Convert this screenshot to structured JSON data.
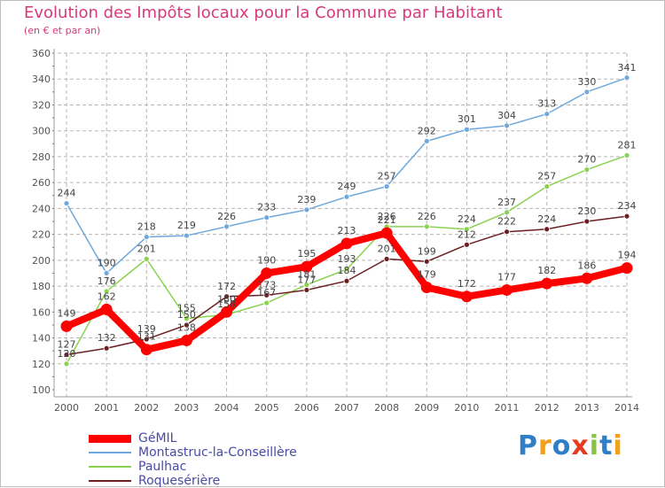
{
  "header": {
    "title": "Evolution des Impôts locaux pour la Commune par Habitant",
    "subtitle": "(en € et par an)"
  },
  "colors": {
    "title": "#d63a7a",
    "axis": "#9e9e9e",
    "grid": "#b5b5b5",
    "label": "#555555"
  },
  "chart_data": {
    "type": "line",
    "title": "Evolution des Impôts locaux pour la Commune par Habitant",
    "subtitle": "(en € et par an)",
    "x": [
      "2000",
      "2001",
      "2002",
      "2003",
      "2004",
      "2005",
      "2006",
      "2007",
      "2008",
      "2009",
      "2010",
      "2011",
      "2012",
      "2013",
      "2014"
    ],
    "ylim": [
      100,
      360
    ],
    "yticks": [
      "100",
      "120",
      "140",
      "160",
      "180",
      "200",
      "220",
      "240",
      "260",
      "280",
      "300",
      "320",
      "340",
      "360"
    ],
    "grid": true,
    "legend": "bottom-left",
    "series": [
      {
        "name": "GéMIL",
        "color": "#ff0000",
        "emphasis": true,
        "values": [
          149,
          162,
          131,
          138,
          160,
          190,
          195,
          213,
          221,
          179,
          172,
          177,
          182,
          186,
          194
        ],
        "labels": [
          "149",
          "162",
          "131",
          "138",
          "160",
          "190",
          "195",
          "213",
          "221",
          "179",
          "172",
          "177",
          "182",
          "186",
          "194"
        ]
      },
      {
        "name": "Montastruc-la-Conseillère",
        "color": "#6fa8dc",
        "values": [
          244,
          190,
          218,
          219,
          226,
          233,
          239,
          249,
          257,
          292,
          301,
          304,
          313,
          330,
          341
        ],
        "labels": [
          "244",
          "190",
          "218",
          "219",
          "226",
          "233",
          "239",
          "249",
          "257",
          "292",
          "301",
          "304",
          "313",
          "330",
          "341"
        ]
      },
      {
        "name": "Paulhac",
        "color": "#8ad14f",
        "values": [
          120,
          176,
          201,
          155,
          158,
          167,
          181,
          193,
          226,
          226,
          224,
          237,
          257,
          270,
          281
        ],
        "labels": [
          "120",
          "176",
          "201",
          "155",
          "158",
          "167",
          "181",
          "193",
          "226",
          "226",
          "224",
          "237",
          "257",
          "270",
          "281"
        ]
      },
      {
        "name": "Roquesérière",
        "color": "#6b1f22",
        "values": [
          127,
          132,
          139,
          150,
          172,
          173,
          177,
          184,
          201,
          199,
          212,
          222,
          224,
          230,
          234
        ],
        "labels": [
          "127",
          "132",
          "139",
          "150",
          "172",
          "173",
          "177",
          "184",
          "201",
          "199",
          "212",
          "222",
          "224",
          "230",
          "234"
        ]
      }
    ]
  },
  "logo": {
    "letters": [
      {
        "ch": "P",
        "color": "#2f7fc8"
      },
      {
        "ch": "r",
        "color": "#f2a01f"
      },
      {
        "ch": "o",
        "color": "#2f7fc8"
      },
      {
        "ch": "x",
        "color": "#e63b1f"
      },
      {
        "ch": "i",
        "color": "#8ac33f"
      },
      {
        "ch": "t",
        "color": "#2f7fc8"
      },
      {
        "ch": "i",
        "color": "#f2a01f"
      }
    ]
  }
}
